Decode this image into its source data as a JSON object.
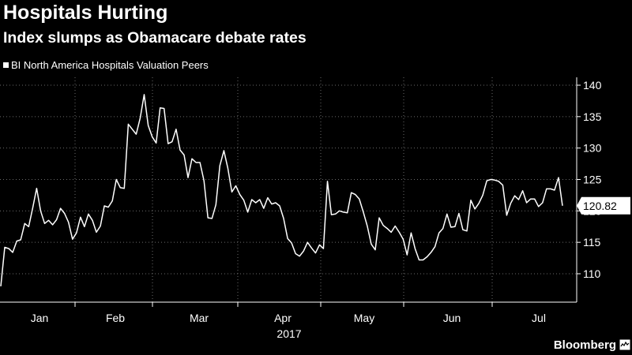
{
  "chart_data": {
    "type": "line",
    "title": "Hospitals Hurting",
    "subtitle": "Index slumps as Obamacare debate rates",
    "legend": {
      "entries": [
        "BI North America Hospitals Valuation Peers"
      ],
      "placement": "top-left"
    },
    "series": [
      {
        "name": "BI North America Hospitals Valuation Peers",
        "color": "#ffffff",
        "values": [
          108,
          114.2,
          114,
          113.4,
          115.2,
          115.4,
          118,
          117.5,
          120.4,
          123.6,
          120,
          118,
          118.5,
          117.8,
          118.6,
          120.4,
          119.6,
          118.2,
          115.5,
          116.5,
          119,
          117.5,
          119.5,
          118.5,
          116.6,
          117.6,
          120.8,
          120.6,
          121.6,
          125,
          123.7,
          123.6,
          133.8,
          133,
          132.2,
          134.8,
          138.5,
          133.6,
          131.8,
          130.8,
          136.4,
          136.3,
          130.7,
          131,
          133,
          129.7,
          128.9,
          125.3,
          128.3,
          127.7,
          127.7,
          124.8,
          118.9,
          118.8,
          121,
          127.2,
          129.6,
          126.8,
          123,
          124,
          122.6,
          121.7,
          119.8,
          121.8,
          121.3,
          121.8,
          120.4,
          122.1,
          121.1,
          121.3,
          120.8,
          118.8,
          115.6,
          114.9,
          113.2,
          112.8,
          113.6,
          115,
          114.1,
          113.3,
          114.6,
          114,
          124.7,
          119.4,
          119.5,
          120,
          119.8,
          119.7,
          122.9,
          122.6,
          121.9,
          119.8,
          117.6,
          114.7,
          113.8,
          118.9,
          117.7,
          117.2,
          116.6,
          117.6,
          116.6,
          115.5,
          113,
          116.5,
          114,
          112.2,
          112.2,
          112.7,
          113.4,
          114.3,
          116.5,
          117.2,
          119.5,
          117.4,
          117.5,
          119.6,
          117,
          116.8,
          121.7,
          120.3,
          121.2,
          122.5,
          124.8,
          125,
          124.9,
          124.7,
          124.1,
          119.3,
          121.2,
          122.4,
          121.8,
          123.2,
          121.3,
          121.9,
          121.9,
          120.7,
          121.3,
          123.5,
          123.5,
          123.3,
          125.3,
          120.82
        ]
      }
    ],
    "x_tick_labels": [
      "Jan",
      "Feb",
      "Mar",
      "Apr",
      "May",
      "Jun",
      "Jul"
    ],
    "x_year_label": "2017",
    "y_ticks": [
      110,
      115,
      120,
      125,
      130,
      135,
      140
    ],
    "y_tick_labels": [
      "110",
      "115",
      "120",
      "125",
      "130",
      "135",
      "140"
    ],
    "ylim": [
      105,
      142
    ],
    "last_value": 120.82,
    "last_value_label": "120.82",
    "y_axis_side": "right",
    "grid": "horizontal-dotted",
    "source": "Bloomberg"
  }
}
